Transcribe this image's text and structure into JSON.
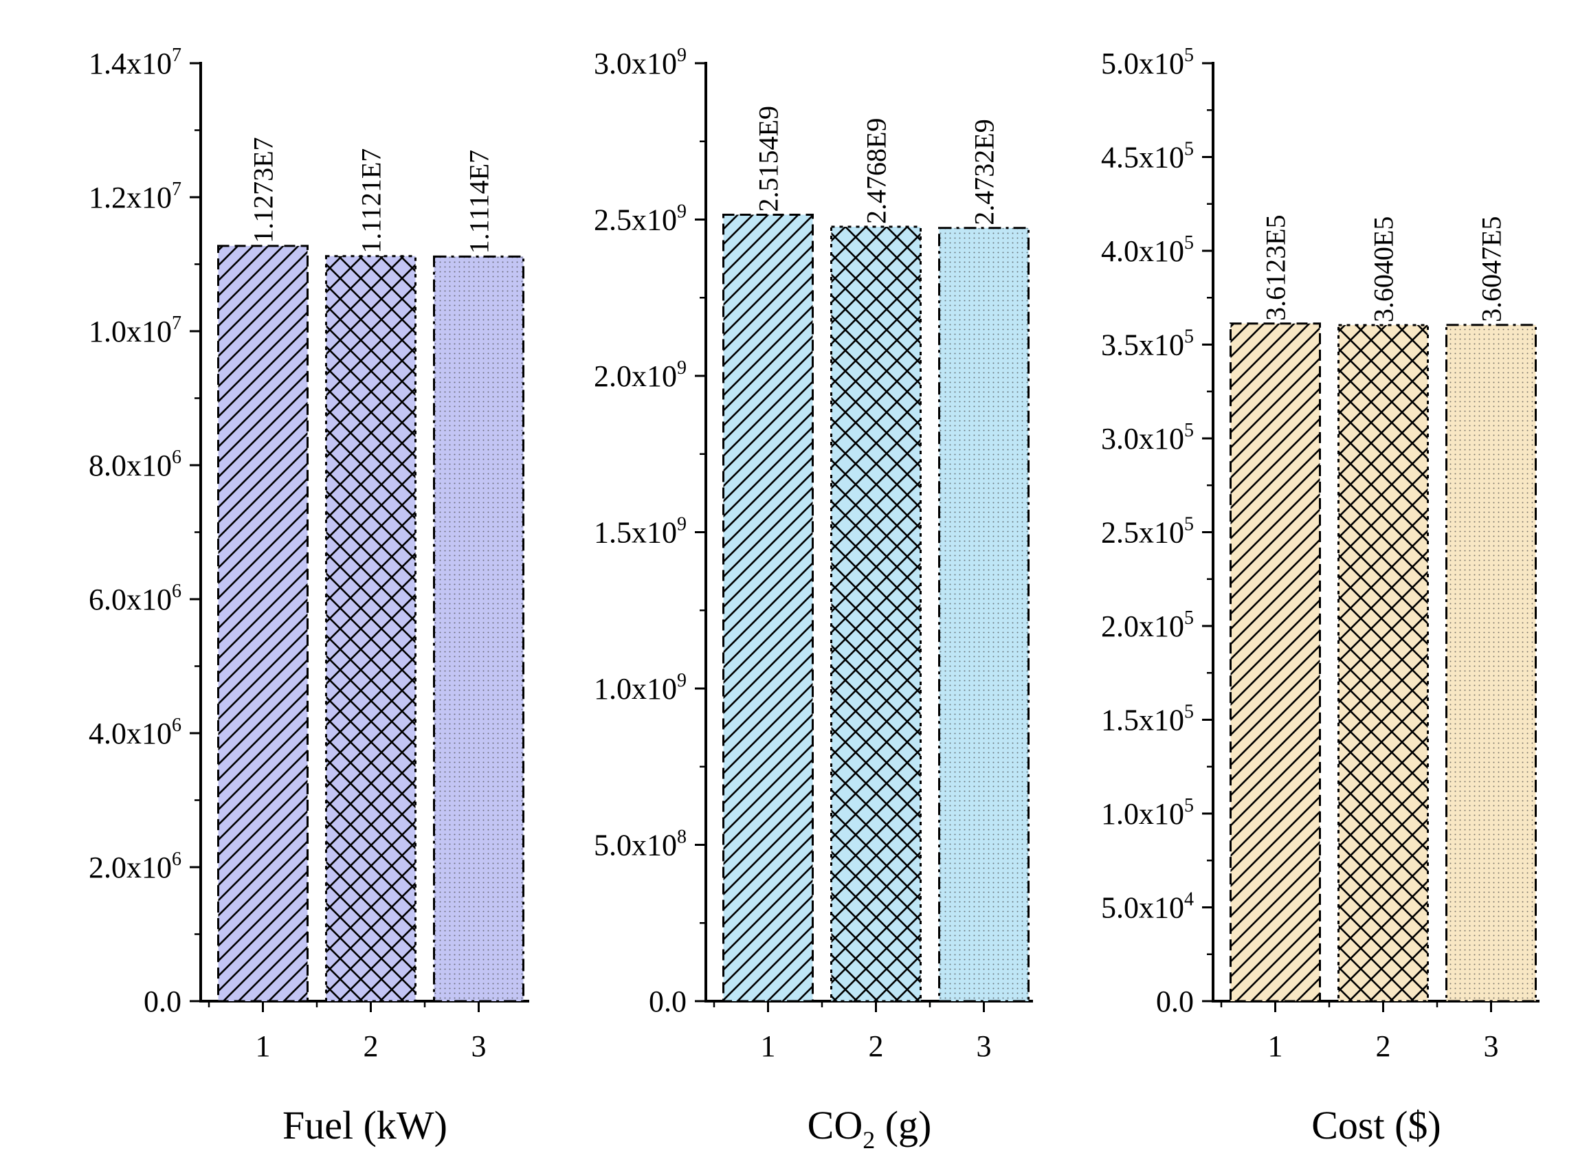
{
  "chart_data": [
    {
      "type": "bar",
      "categories": [
        "1",
        "2",
        "3"
      ],
      "values": [
        11273000,
        11121000,
        11114000
      ],
      "data_labels": [
        "1.1273E7",
        "1.1121E7",
        "1.1114E7"
      ],
      "title": "",
      "xlabel": "Fuel (kW)",
      "xlabel_sub": "",
      "xlabel_tail": "",
      "ylabel": "",
      "ylim": [
        0,
        14000000
      ],
      "yticks": [
        0,
        2000000,
        4000000,
        6000000,
        8000000,
        10000000,
        12000000,
        14000000
      ],
      "ytick_labels": [
        {
          "base": "0.0",
          "exp": ""
        },
        {
          "base": "2.0x10",
          "exp": "6"
        },
        {
          "base": "4.0x10",
          "exp": "6"
        },
        {
          "base": "6.0x10",
          "exp": "6"
        },
        {
          "base": "8.0x10",
          "exp": "6"
        },
        {
          "base": "1.0x10",
          "exp": "7"
        },
        {
          "base": "1.2x10",
          "exp": "7"
        },
        {
          "base": "1.4x10",
          "exp": "7"
        }
      ],
      "minor_ticks_per_major": 1,
      "fill_color": "#c3c5f4",
      "patterns": [
        "diagonal-hatch",
        "cross-hatch",
        "dots"
      ],
      "grid": false
    },
    {
      "type": "bar",
      "categories": [
        "1",
        "2",
        "3"
      ],
      "values": [
        2515400000,
        2476800000,
        2473200000
      ],
      "data_labels": [
        "2.5154E9",
        "2.4768E9",
        "2.4732E9"
      ],
      "title": "",
      "xlabel": "CO",
      "xlabel_sub": "2",
      "xlabel_tail": " (g)",
      "ylabel": "",
      "ylim": [
        0,
        3000000000
      ],
      "yticks": [
        0,
        500000000,
        1000000000,
        1500000000,
        2000000000,
        2500000000,
        3000000000
      ],
      "ytick_labels": [
        {
          "base": "0.0",
          "exp": ""
        },
        {
          "base": "5.0x10",
          "exp": "8"
        },
        {
          "base": "1.0x10",
          "exp": "9"
        },
        {
          "base": "1.5x10",
          "exp": "9"
        },
        {
          "base": "2.0x10",
          "exp": "9"
        },
        {
          "base": "2.5x10",
          "exp": "9"
        },
        {
          "base": "3.0x10",
          "exp": "9"
        }
      ],
      "minor_ticks_per_major": 1,
      "fill_color": "#bfe6f6",
      "patterns": [
        "diagonal-hatch",
        "cross-hatch",
        "dots"
      ],
      "grid": false
    },
    {
      "type": "bar",
      "categories": [
        "1",
        "2",
        "3"
      ],
      "values": [
        361230,
        360400,
        360470
      ],
      "data_labels": [
        "3.6123E5",
        "3.6040E5",
        "3.6047E5"
      ],
      "title": "",
      "xlabel": "Cost ($)",
      "xlabel_sub": "",
      "xlabel_tail": "",
      "ylabel": "",
      "ylim": [
        0,
        500000
      ],
      "yticks": [
        0,
        50000,
        100000,
        150000,
        200000,
        250000,
        300000,
        350000,
        400000,
        450000,
        500000
      ],
      "ytick_labels": [
        {
          "base": "0.0",
          "exp": ""
        },
        {
          "base": "5.0x10",
          "exp": "4"
        },
        {
          "base": "1.0x10",
          "exp": "5"
        },
        {
          "base": "1.5x10",
          "exp": "5"
        },
        {
          "base": "2.0x10",
          "exp": "5"
        },
        {
          "base": "2.5x10",
          "exp": "5"
        },
        {
          "base": "3.0x10",
          "exp": "5"
        },
        {
          "base": "3.5x10",
          "exp": "5"
        },
        {
          "base": "4.0x10",
          "exp": "5"
        },
        {
          "base": "4.5x10",
          "exp": "5"
        },
        {
          "base": "5.0x10",
          "exp": "5"
        }
      ],
      "minor_ticks_per_major": 1,
      "fill_color": "#f8e7c4",
      "patterns": [
        "diagonal-hatch",
        "cross-hatch",
        "dots"
      ],
      "grid": false
    }
  ]
}
